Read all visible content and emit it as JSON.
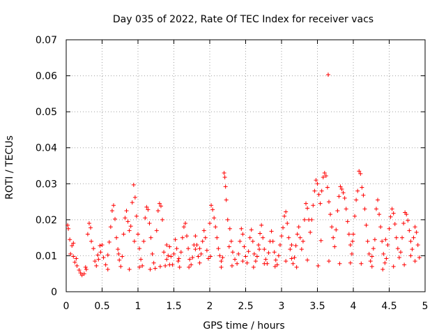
{
  "chart_data": {
    "type": "scatter",
    "title": "Day 035 of 2022, Rate Of TEC Index for receiver vacs",
    "xlabel": "GPS time / hours",
    "ylabel": "ROTI / TECUs",
    "xlim": [
      0,
      5
    ],
    "ylim": [
      0,
      0.07
    ],
    "x_ticks": [
      "0",
      "0.5",
      "1",
      "1.5",
      "2",
      "2.5",
      "3",
      "3.5",
      "4",
      "4.5",
      "5"
    ],
    "y_ticks": [
      "0",
      "0.01",
      "0.02",
      "0.03",
      "0.04",
      "0.05",
      "0.06",
      "0.07"
    ],
    "grid": true,
    "marker": "plus",
    "series_color": "#ff0000",
    "points": [
      [
        0.02,
        0.0185
      ],
      [
        0.03,
        0.0175
      ],
      [
        0.05,
        0.0145
      ],
      [
        0.08,
        0.0128
      ],
      [
        0.1,
        0.0098
      ],
      [
        0.12,
        0.0082
      ],
      [
        0.15,
        0.0072
      ],
      [
        0.18,
        0.006
      ],
      [
        0.2,
        0.0052
      ],
      [
        0.22,
        0.0046
      ],
      [
        0.25,
        0.005
      ],
      [
        0.28,
        0.0062
      ],
      [
        0.3,
        0.016
      ],
      [
        0.32,
        0.019
      ],
      [
        0.34,
        0.0178
      ],
      [
        0.35,
        0.014
      ],
      [
        0.38,
        0.012
      ],
      [
        0.4,
        0.0085
      ],
      [
        0.42,
        0.0072
      ],
      [
        0.45,
        0.009
      ],
      [
        0.48,
        0.011
      ],
      [
        0.5,
        0.013
      ],
      [
        0.52,
        0.0095
      ],
      [
        0.55,
        0.0075
      ],
      [
        0.58,
        0.0102
      ],
      [
        0.6,
        0.0138
      ],
      [
        0.62,
        0.018
      ],
      [
        0.64,
        0.0225
      ],
      [
        0.66,
        0.024
      ],
      [
        0.68,
        0.0202
      ],
      [
        0.7,
        0.015
      ],
      [
        0.72,
        0.0118
      ],
      [
        0.74,
        0.0088
      ],
      [
        0.76,
        0.007
      ],
      [
        0.78,
        0.0098
      ],
      [
        0.8,
        0.016
      ],
      [
        0.82,
        0.0205
      ],
      [
        0.84,
        0.0225
      ],
      [
        0.86,
        0.0195
      ],
      [
        0.88,
        0.017
      ],
      [
        0.9,
        0.0182
      ],
      [
        0.92,
        0.0248
      ],
      [
        0.94,
        0.0297
      ],
      [
        0.96,
        0.0262
      ],
      [
        0.98,
        0.021
      ],
      [
        1.0,
        0.016
      ],
      [
        1.02,
        0.012
      ],
      [
        1.04,
        0.009
      ],
      [
        1.06,
        0.0072
      ],
      [
        1.08,
        0.014
      ],
      [
        1.1,
        0.0205
      ],
      [
        1.12,
        0.0235
      ],
      [
        1.14,
        0.0228
      ],
      [
        1.16,
        0.019
      ],
      [
        1.18,
        0.015
      ],
      [
        1.2,
        0.0105
      ],
      [
        1.22,
        0.008
      ],
      [
        1.24,
        0.0065
      ],
      [
        1.26,
        0.017
      ],
      [
        1.28,
        0.0225
      ],
      [
        1.3,
        0.0245
      ],
      [
        1.32,
        0.0238
      ],
      [
        1.34,
        0.02
      ],
      [
        1.36,
        0.011
      ],
      [
        1.38,
        0.0072
      ],
      [
        1.4,
        0.009
      ],
      [
        1.42,
        0.01
      ],
      [
        1.44,
        0.0125
      ],
      [
        1.46,
        0.0098
      ],
      [
        1.48,
        0.0075
      ],
      [
        1.5,
        0.0105
      ],
      [
        1.52,
        0.0145
      ],
      [
        1.54,
        0.012
      ],
      [
        1.56,
        0.0085
      ],
      [
        1.58,
        0.0068
      ],
      [
        1.6,
        0.011
      ],
      [
        1.62,
        0.015
      ],
      [
        1.64,
        0.018
      ],
      [
        1.66,
        0.019
      ],
      [
        1.68,
        0.0155
      ],
      [
        1.7,
        0.012
      ],
      [
        1.72,
        0.009
      ],
      [
        1.74,
        0.0075
      ],
      [
        1.76,
        0.0095
      ],
      [
        1.78,
        0.013
      ],
      [
        1.8,
        0.0155
      ],
      [
        1.82,
        0.013
      ],
      [
        1.84,
        0.0098
      ],
      [
        1.86,
        0.008
      ],
      [
        1.88,
        0.0105
      ],
      [
        1.9,
        0.014
      ],
      [
        1.92,
        0.017
      ],
      [
        1.94,
        0.015
      ],
      [
        1.96,
        0.0115
      ],
      [
        1.98,
        0.0092
      ],
      [
        2.0,
        0.019
      ],
      [
        2.02,
        0.024
      ],
      [
        2.04,
        0.0228
      ],
      [
        2.06,
        0.0205
      ],
      [
        2.08,
        0.018
      ],
      [
        2.1,
        0.015
      ],
      [
        2.12,
        0.012
      ],
      [
        2.14,
        0.01
      ],
      [
        2.16,
        0.0085
      ],
      [
        2.18,
        0.0095
      ],
      [
        2.2,
        0.033
      ],
      [
        2.21,
        0.0318
      ],
      [
        2.22,
        0.0292
      ],
      [
        2.23,
        0.0255
      ],
      [
        2.25,
        0.02
      ],
      [
        2.28,
        0.0175
      ],
      [
        2.3,
        0.014
      ],
      [
        2.32,
        0.011
      ],
      [
        2.35,
        0.009
      ],
      [
        2.38,
        0.0078
      ],
      [
        2.4,
        0.0105
      ],
      [
        2.42,
        0.014
      ],
      [
        2.44,
        0.0175
      ],
      [
        2.46,
        0.016
      ],
      [
        2.48,
        0.0125
      ],
      [
        2.5,
        0.0098
      ],
      [
        2.52,
        0.008
      ],
      [
        2.54,
        0.0112
      ],
      [
        2.56,
        0.015
      ],
      [
        2.58,
        0.0172
      ],
      [
        2.6,
        0.014
      ],
      [
        2.62,
        0.0105
      ],
      [
        2.64,
        0.0085
      ],
      [
        2.66,
        0.0098
      ],
      [
        2.68,
        0.013
      ],
      [
        2.7,
        0.0162
      ],
      [
        2.72,
        0.0185
      ],
      [
        2.74,
        0.015
      ],
      [
        2.76,
        0.0118
      ],
      [
        2.78,
        0.009
      ],
      [
        2.8,
        0.0078
      ],
      [
        2.82,
        0.0108
      ],
      [
        2.84,
        0.014
      ],
      [
        2.86,
        0.0168
      ],
      [
        2.88,
        0.014
      ],
      [
        2.9,
        0.011
      ],
      [
        2.92,
        0.0088
      ],
      [
        2.94,
        0.0075
      ],
      [
        2.96,
        0.01
      ],
      [
        2.98,
        0.013
      ],
      [
        3.0,
        0.0155
      ],
      [
        3.02,
        0.0178
      ],
      [
        3.04,
        0.021
      ],
      [
        3.06,
        0.0222
      ],
      [
        3.08,
        0.019
      ],
      [
        3.1,
        0.015
      ],
      [
        3.12,
        0.0118
      ],
      [
        3.14,
        0.0092
      ],
      [
        3.16,
        0.0078
      ],
      [
        3.18,
        0.0095
      ],
      [
        3.2,
        0.0128
      ],
      [
        3.22,
        0.016
      ],
      [
        3.24,
        0.018
      ],
      [
        3.26,
        0.015
      ],
      [
        3.28,
        0.0118
      ],
      [
        3.3,
        0.014
      ],
      [
        3.32,
        0.02
      ],
      [
        3.34,
        0.0245
      ],
      [
        3.36,
        0.0232
      ],
      [
        3.38,
        0.02
      ],
      [
        3.4,
        0.0165
      ],
      [
        3.42,
        0.02
      ],
      [
        3.44,
        0.024
      ],
      [
        3.46,
        0.028
      ],
      [
        3.48,
        0.031
      ],
      [
        3.5,
        0.03
      ],
      [
        3.52,
        0.027
      ],
      [
        3.54,
        0.0245
      ],
      [
        3.56,
        0.028
      ],
      [
        3.58,
        0.0318
      ],
      [
        3.6,
        0.033
      ],
      [
        3.62,
        0.0322
      ],
      [
        3.64,
        0.029
      ],
      [
        3.65,
        0.0603
      ],
      [
        3.66,
        0.025
      ],
      [
        3.68,
        0.0215
      ],
      [
        3.7,
        0.018
      ],
      [
        3.72,
        0.015
      ],
      [
        3.74,
        0.0125
      ],
      [
        3.76,
        0.0172
      ],
      [
        3.78,
        0.0225
      ],
      [
        3.8,
        0.0265
      ],
      [
        3.82,
        0.0292
      ],
      [
        3.84,
        0.0285
      ],
      [
        3.86,
        0.0275
      ],
      [
        3.88,
        0.026
      ],
      [
        3.9,
        0.023
      ],
      [
        3.92,
        0.0195
      ],
      [
        3.94,
        0.016
      ],
      [
        3.96,
        0.013
      ],
      [
        3.98,
        0.0105
      ],
      [
        4.0,
        0.016
      ],
      [
        4.02,
        0.021
      ],
      [
        4.04,
        0.0255
      ],
      [
        4.06,
        0.028
      ],
      [
        4.08,
        0.0335
      ],
      [
        4.1,
        0.0328
      ],
      [
        4.12,
        0.029
      ],
      [
        4.14,
        0.0268
      ],
      [
        4.16,
        0.023
      ],
      [
        4.18,
        0.0185
      ],
      [
        4.2,
        0.014
      ],
      [
        4.22,
        0.0105
      ],
      [
        4.24,
        0.0085
      ],
      [
        4.26,
        0.0098
      ],
      [
        4.28,
        0.012
      ],
      [
        4.3,
        0.0145
      ],
      [
        4.32,
        0.023
      ],
      [
        4.34,
        0.0255
      ],
      [
        4.36,
        0.0215
      ],
      [
        4.38,
        0.018
      ],
      [
        4.4,
        0.014
      ],
      [
        4.42,
        0.0105
      ],
      [
        4.44,
        0.008
      ],
      [
        4.46,
        0.0092
      ],
      [
        4.48,
        0.013
      ],
      [
        4.5,
        0.0175
      ],
      [
        4.52,
        0.0208
      ],
      [
        4.54,
        0.023
      ],
      [
        4.56,
        0.0218
      ],
      [
        4.58,
        0.0188
      ],
      [
        4.6,
        0.015
      ],
      [
        4.62,
        0.012
      ],
      [
        4.64,
        0.0095
      ],
      [
        4.66,
        0.011
      ],
      [
        4.68,
        0.015
      ],
      [
        4.7,
        0.019
      ],
      [
        4.72,
        0.022
      ],
      [
        4.74,
        0.0215
      ],
      [
        4.76,
        0.0198
      ],
      [
        4.78,
        0.017
      ],
      [
        4.8,
        0.014
      ],
      [
        4.82,
        0.0118
      ],
      [
        4.84,
        0.015
      ],
      [
        4.86,
        0.018
      ],
      [
        4.88,
        0.0165
      ],
      [
        4.9,
        0.013
      ],
      [
        4.92,
        0.0095
      ],
      [
        0.06,
        0.0105
      ],
      [
        0.14,
        0.0092
      ],
      [
        0.27,
        0.0068
      ],
      [
        0.44,
        0.0102
      ],
      [
        0.58,
        0.0062
      ],
      [
        0.73,
        0.0105
      ],
      [
        0.88,
        0.0062
      ],
      [
        1.02,
        0.0068
      ],
      [
        1.17,
        0.0062
      ],
      [
        1.31,
        0.007
      ],
      [
        1.44,
        0.0075
      ],
      [
        1.57,
        0.0092
      ],
      [
        1.71,
        0.0068
      ],
      [
        1.86,
        0.012
      ],
      [
        2.01,
        0.0098
      ],
      [
        2.16,
        0.0068
      ],
      [
        2.31,
        0.0072
      ],
      [
        2.46,
        0.0085
      ],
      [
        2.61,
        0.0068
      ],
      [
        2.76,
        0.0078
      ],
      [
        2.91,
        0.007
      ],
      [
        3.06,
        0.0085
      ],
      [
        3.21,
        0.0068
      ],
      [
        3.36,
        0.0088
      ],
      [
        3.51,
        0.0072
      ],
      [
        3.66,
        0.0085
      ],
      [
        3.81,
        0.0078
      ],
      [
        3.96,
        0.008
      ],
      [
        4.11,
        0.0078
      ],
      [
        4.26,
        0.007
      ],
      [
        4.41,
        0.0062
      ],
      [
        4.56,
        0.007
      ],
      [
        4.71,
        0.0075
      ],
      [
        4.86,
        0.0085
      ],
      [
        0.1,
        0.0135
      ],
      [
        0.47,
        0.0128
      ],
      [
        0.95,
        0.014
      ],
      [
        1.4,
        0.013
      ],
      [
        1.8,
        0.0118
      ],
      [
        2.27,
        0.0125
      ],
      [
        2.69,
        0.0118
      ],
      [
        3.14,
        0.013
      ],
      [
        3.55,
        0.0142
      ],
      [
        3.99,
        0.014
      ],
      [
        4.45,
        0.0145
      ],
      [
        4.8,
        0.01
      ]
    ]
  }
}
